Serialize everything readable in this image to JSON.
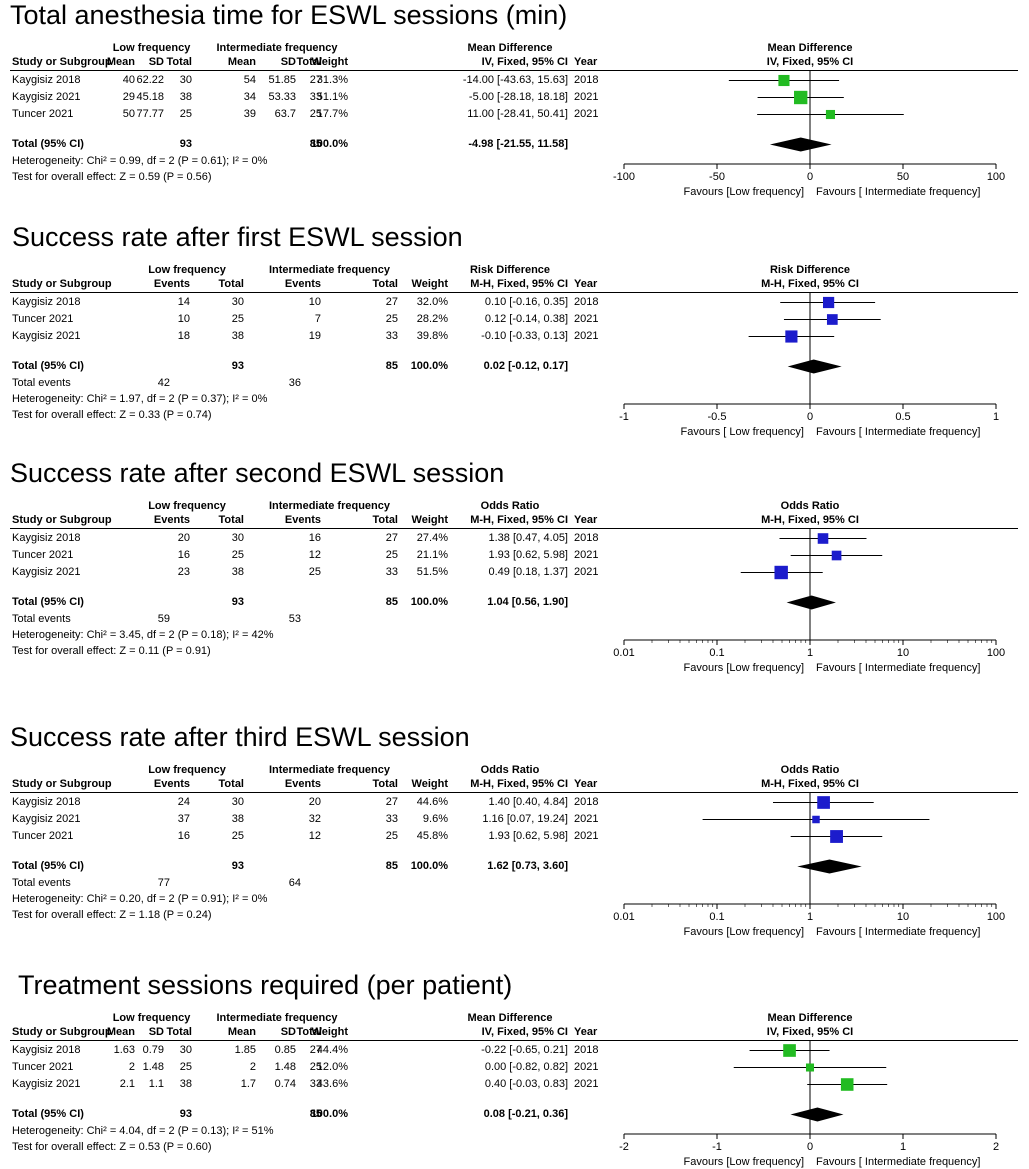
{
  "chart_data": [
    {
      "type": "forest",
      "title": "Total anesthesia time for ESWL sessions (min)",
      "measure": "continuous",
      "group1": "Low frequency",
      "group2": "Intermediate frequency",
      "sub_headers": [
        "Mean",
        "SD",
        "Total",
        "Mean",
        "SD",
        "Total"
      ],
      "effect_header": "Mean Difference",
      "effect_method": "IV, Fixed, 95% CI",
      "study_header": "Study or Subgroup",
      "weight_header": "Weight",
      "year_header": "Year",
      "studies": [
        {
          "name": "Kaygisiz 2018",
          "cols": [
            "40",
            "62.22",
            "30",
            "54",
            "51.85",
            "27"
          ],
          "weight": "31.3%",
          "ci_text": "-14.00 [-43.63, 15.63]",
          "year": "2018",
          "est": -14.0,
          "lo": -43.63,
          "hi": 15.63,
          "w": 31.3
        },
        {
          "name": "Kaygisiz  2021",
          "cols": [
            "29",
            "45.18",
            "38",
            "34",
            "53.33",
            "33"
          ],
          "weight": "51.1%",
          "ci_text": "-5.00 [-28.18, 18.18]",
          "year": "2021",
          "est": -5.0,
          "lo": -28.18,
          "hi": 18.18,
          "w": 51.1
        },
        {
          "name": "Tuncer 2021",
          "cols": [
            "50",
            "77.77",
            "25",
            "39",
            "63.7",
            "25"
          ],
          "weight": "17.7%",
          "ci_text": "11.00 [-28.41, 50.41]",
          "year": "2021",
          "est": 11.0,
          "lo": -28.41,
          "hi": 50.41,
          "w": 17.7
        }
      ],
      "total": {
        "label": "Total (95% CI)",
        "n1": "93",
        "n2": "85",
        "weight": "100.0%",
        "ci_text": "-4.98 [-21.55, 11.58]",
        "est": -4.98,
        "lo": -21.55,
        "hi": 11.58
      },
      "total_events": null,
      "heterogeneity": "Heterogeneity: Chi² = 0.99, df = 2 (P = 0.61); I² = 0%",
      "overall": "Test for overall effect: Z = 0.59 (P = 0.56)",
      "axis": {
        "scale": "linear",
        "min": -100,
        "max": 100,
        "null": 0,
        "ticks": [
          -100,
          -50,
          0,
          50,
          100
        ],
        "tick_labels": [
          "-100",
          "-50",
          "0",
          "50",
          "100"
        ]
      },
      "favours_left": "Favours [Low frequency]",
      "favours_right": "Favours [ Intermediate frequency]",
      "marker_color": "#22bb22"
    },
    {
      "type": "forest",
      "title": "Success rate after first ESWL session",
      "measure": "dichotomous",
      "group1": "Low frequency",
      "group2": "Intermediate frequency",
      "sub_headers": [
        "Events",
        "Total",
        "Events",
        "Total"
      ],
      "effect_header": "Risk Difference",
      "effect_method": "M-H, Fixed, 95% CI",
      "study_header": "Study or Subgroup",
      "weight_header": "Weight",
      "year_header": "Year",
      "studies": [
        {
          "name": "Kaygisiz 2018",
          "cols": [
            "14",
            "30",
            "10",
            "27"
          ],
          "weight": "32.0%",
          "ci_text": "0.10 [-0.16, 0.35]",
          "year": "2018",
          "est": 0.1,
          "lo": -0.16,
          "hi": 0.35,
          "w": 32.0
        },
        {
          "name": "Tuncer 2021",
          "cols": [
            "10",
            "25",
            "7",
            "25"
          ],
          "weight": "28.2%",
          "ci_text": "0.12 [-0.14, 0.38]",
          "year": "2021",
          "est": 0.12,
          "lo": -0.14,
          "hi": 0.38,
          "w": 28.2
        },
        {
          "name": "Kaygisiz  2021",
          "cols": [
            "18",
            "38",
            "19",
            "33"
          ],
          "weight": "39.8%",
          "ci_text": "-0.10 [-0.33, 0.13]",
          "year": "2021",
          "est": -0.1,
          "lo": -0.33,
          "hi": 0.13,
          "w": 39.8
        }
      ],
      "total": {
        "label": "Total (95% CI)",
        "n1": "93",
        "n2": "85",
        "weight": "100.0%",
        "ci_text": "0.02 [-0.12, 0.17]",
        "est": 0.02,
        "lo": -0.12,
        "hi": 0.17
      },
      "total_events": {
        "label": "Total events",
        "e1": "42",
        "e2": "36"
      },
      "heterogeneity": "Heterogeneity: Chi² = 1.97, df = 2 (P = 0.37); I² = 0%",
      "overall": "Test for overall effect: Z = 0.33 (P = 0.74)",
      "axis": {
        "scale": "linear",
        "min": -1,
        "max": 1,
        "null": 0,
        "ticks": [
          -1,
          -0.5,
          0,
          0.5,
          1
        ],
        "tick_labels": [
          "-1",
          "-0.5",
          "0",
          "0.5",
          "1"
        ]
      },
      "favours_left": "Favours [ Low frequency]",
      "favours_right": "Favours [ Intermediate frequency]",
      "marker_color": "#1c1ccc"
    },
    {
      "type": "forest",
      "title": "Success rate after second ESWL session",
      "measure": "dichotomous",
      "group1": "Low frequency",
      "group2": "Intermediate frequency",
      "sub_headers": [
        "Events",
        "Total",
        "Events",
        "Total"
      ],
      "effect_header": "Odds Ratio",
      "effect_method": "M-H, Fixed, 95% CI",
      "study_header": "Study or Subgroup",
      "weight_header": "Weight",
      "year_header": "Year",
      "studies": [
        {
          "name": "Kaygisiz 2018",
          "cols": [
            "20",
            "30",
            "16",
            "27"
          ],
          "weight": "27.4%",
          "ci_text": "1.38 [0.47, 4.05]",
          "year": "2018",
          "est": 1.38,
          "lo": 0.47,
          "hi": 4.05,
          "w": 27.4
        },
        {
          "name": "Tuncer 2021",
          "cols": [
            "16",
            "25",
            "12",
            "25"
          ],
          "weight": "21.1%",
          "ci_text": "1.93 [0.62, 5.98]",
          "year": "2021",
          "est": 1.93,
          "lo": 0.62,
          "hi": 5.98,
          "w": 21.1
        },
        {
          "name": "Kaygisiz  2021",
          "cols": [
            "23",
            "38",
            "25",
            "33"
          ],
          "weight": "51.5%",
          "ci_text": "0.49 [0.18, 1.37]",
          "year": "2021",
          "est": 0.49,
          "lo": 0.18,
          "hi": 1.37,
          "w": 51.5
        }
      ],
      "total": {
        "label": "Total (95% CI)",
        "n1": "93",
        "n2": "85",
        "weight": "100.0%",
        "ci_text": "1.04 [0.56, 1.90]",
        "est": 1.04,
        "lo": 0.56,
        "hi": 1.9
      },
      "total_events": {
        "label": "Total events",
        "e1": "59",
        "e2": "53"
      },
      "heterogeneity": "Heterogeneity: Chi² = 3.45, df = 2 (P = 0.18); I² = 42%",
      "overall": "Test for overall effect: Z = 0.11 (P = 0.91)",
      "axis": {
        "scale": "log",
        "min": 0.01,
        "max": 100,
        "null": 1,
        "ticks": [
          0.01,
          0.1,
          1,
          10,
          100
        ],
        "tick_labels": [
          "0.01",
          "0.1",
          "1",
          "10",
          "100"
        ]
      },
      "favours_left": "Favours [Low frequency]",
      "favours_right": "Favours [ Intermediate frequency]",
      "marker_color": "#1c1ccc"
    },
    {
      "type": "forest",
      "title": "Success rate after third ESWL session",
      "measure": "dichotomous",
      "group1": "Low frequency",
      "group2": "Intermediate frequency",
      "sub_headers": [
        "Events",
        "Total",
        "Events",
        "Total"
      ],
      "effect_header": "Odds Ratio",
      "effect_method": "M-H, Fixed, 95% CI",
      "study_header": "Study or Subgroup",
      "weight_header": "Weight",
      "year_header": "Year",
      "studies": [
        {
          "name": "Kaygisiz 2018",
          "cols": [
            "24",
            "30",
            "20",
            "27"
          ],
          "weight": "44.6%",
          "ci_text": "1.40 [0.40, 4.84]",
          "year": "2018",
          "est": 1.4,
          "lo": 0.4,
          "hi": 4.84,
          "w": 44.6
        },
        {
          "name": "Kaygisiz  2021",
          "cols": [
            "37",
            "38",
            "32",
            "33"
          ],
          "weight": "9.6%",
          "ci_text": "1.16 [0.07, 19.24]",
          "year": "2021",
          "est": 1.16,
          "lo": 0.07,
          "hi": 19.24,
          "w": 9.6
        },
        {
          "name": "Tuncer 2021",
          "cols": [
            "16",
            "25",
            "12",
            "25"
          ],
          "weight": "45.8%",
          "ci_text": "1.93 [0.62, 5.98]",
          "year": "2021",
          "est": 1.93,
          "lo": 0.62,
          "hi": 5.98,
          "w": 45.8
        }
      ],
      "total": {
        "label": "Total (95% CI)",
        "n1": "93",
        "n2": "85",
        "weight": "100.0%",
        "ci_text": "1.62 [0.73, 3.60]",
        "est": 1.62,
        "lo": 0.73,
        "hi": 3.6
      },
      "total_events": {
        "label": "Total events",
        "e1": "77",
        "e2": "64"
      },
      "heterogeneity": "Heterogeneity: Chi² = 0.20, df = 2 (P = 0.91); I² = 0%",
      "overall": "Test for overall effect: Z = 1.18 (P = 0.24)",
      "axis": {
        "scale": "log",
        "min": 0.01,
        "max": 100,
        "null": 1,
        "ticks": [
          0.01,
          0.1,
          1,
          10,
          100
        ],
        "tick_labels": [
          "0.01",
          "0.1",
          "1",
          "10",
          "100"
        ]
      },
      "favours_left": "Favours [Low frequency]",
      "favours_right": "Favours [ Intermediate frequency]",
      "marker_color": "#1c1ccc"
    },
    {
      "type": "forest",
      "title": "Treatment sessions required (per patient)",
      "measure": "continuous",
      "group1": "Low frequency",
      "group2": "Intermediate frequency",
      "sub_headers": [
        "Mean",
        "SD",
        "Total",
        "Mean",
        "SD",
        "Total"
      ],
      "effect_header": "Mean Difference",
      "effect_method": "IV, Fixed, 95% CI",
      "study_header": "Study or Subgroup",
      "weight_header": "Weight",
      "year_header": "Year",
      "studies": [
        {
          "name": "Kaygisiz 2018",
          "cols": [
            "1.63",
            "0.79",
            "30",
            "1.85",
            "0.85",
            "27"
          ],
          "weight": "44.4%",
          "ci_text": "-0.22 [-0.65, 0.21]",
          "year": "2018",
          "est": -0.22,
          "lo": -0.65,
          "hi": 0.21,
          "w": 44.4
        },
        {
          "name": "Tuncer 2021",
          "cols": [
            "2",
            "1.48",
            "25",
            "2",
            "1.48",
            "25"
          ],
          "weight": "12.0%",
          "ci_text": "0.00 [-0.82, 0.82]",
          "year": "2021",
          "est": 0.0,
          "lo": -0.82,
          "hi": 0.82,
          "w": 12.0
        },
        {
          "name": "Kaygisiz  2021",
          "cols": [
            "2.1",
            "1.1",
            "38",
            "1.7",
            "0.74",
            "33"
          ],
          "weight": "43.6%",
          "ci_text": "0.40 [-0.03, 0.83]",
          "year": "2021",
          "est": 0.4,
          "lo": -0.03,
          "hi": 0.83,
          "w": 43.6
        }
      ],
      "total": {
        "label": "Total (95% CI)",
        "n1": "93",
        "n2": "85",
        "weight": "100.0%",
        "ci_text": "0.08 [-0.21, 0.36]",
        "est": 0.08,
        "lo": -0.21,
        "hi": 0.36
      },
      "total_events": null,
      "heterogeneity": "Heterogeneity: Chi² = 4.04, df = 2 (P = 0.13); I² = 51%",
      "overall": "Test for overall effect: Z = 0.53 (P = 0.60)",
      "axis": {
        "scale": "linear",
        "min": -2,
        "max": 2,
        "null": 0,
        "ticks": [
          -2,
          -1,
          0,
          1,
          2
        ],
        "tick_labels": [
          "-2",
          "-1",
          "0",
          "1",
          "2"
        ]
      },
      "favours_left": "Favours [Low frequency]",
      "favours_right": "Favours [ Intermediate frequency]",
      "marker_color": "#22bb22"
    }
  ]
}
